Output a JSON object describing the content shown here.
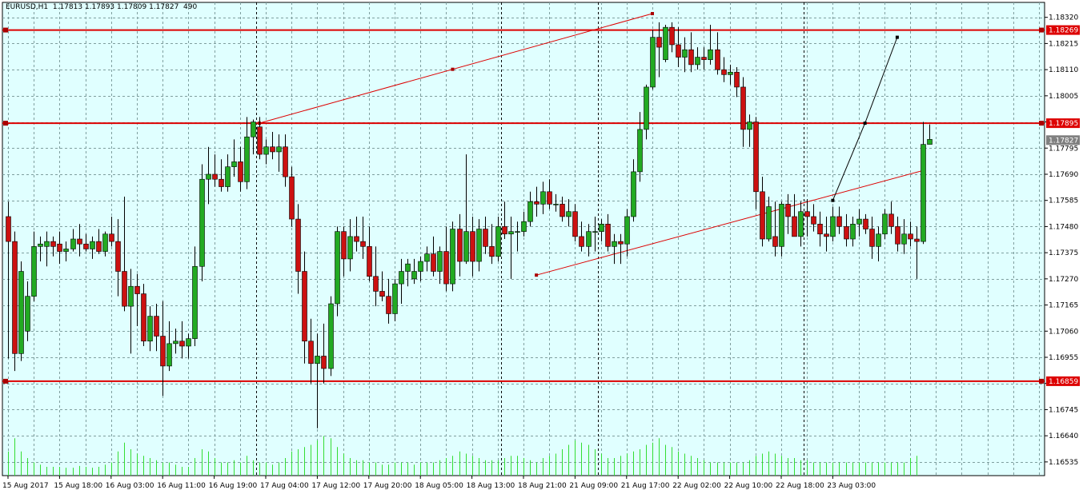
{
  "header": {
    "symbol": "EURUSD,H1",
    "ohlc": "1.17813 1.17893 1.17809 1.17827",
    "volume": "490"
  },
  "colors": {
    "background": "#e0ffff",
    "grid": "#7f9f9f",
    "bull": "#22aa22",
    "bear": "#cc1111",
    "volume": "#33dd33",
    "level_line": "#dd0000",
    "trend_line": "#dd0000",
    "projection_line": "#000000",
    "current_price_bg": "#808080"
  },
  "chart_data": {
    "type": "candlestick",
    "y_ticks": [
      "1.18320",
      "1.18215",
      "1.18110",
      "1.18005",
      "1.17900",
      "1.17795",
      "1.17690",
      "1.17585",
      "1.17480",
      "1.17375",
      "1.17270",
      "1.17165",
      "1.17060",
      "1.16955",
      "1.16850",
      "1.16745",
      "1.16640",
      "1.16535"
    ],
    "x_ticks": [
      "15 Aug 2017",
      "15 Aug 18:00",
      "16 Aug 03:00",
      "16 Aug 11:00",
      "16 Aug 19:00",
      "17 Aug 04:00",
      "17 Aug 12:00",
      "17 Aug 20:00",
      "18 Aug 05:00",
      "18 Aug 13:00",
      "18 Aug 21:00",
      "21 Aug 09:00",
      "21 Aug 17:00",
      "22 Aug 02:00",
      "22 Aug 10:00",
      "22 Aug 18:00",
      "23 Aug 03:00"
    ],
    "ylim": [
      1.1648,
      1.1838
    ],
    "candles": [
      {
        "o": 1.1752,
        "h": 1.1758,
        "l": 1.1695,
        "c": 1.1742
      },
      {
        "o": 1.1742,
        "h": 1.1746,
        "l": 1.169,
        "c": 1.1697
      },
      {
        "o": 1.1697,
        "h": 1.1734,
        "l": 1.1694,
        "c": 1.173
      },
      {
        "o": 1.1706,
        "h": 1.1726,
        "l": 1.1702,
        "c": 1.172
      },
      {
        "o": 1.172,
        "h": 1.1746,
        "l": 1.1718,
        "c": 1.174
      },
      {
        "o": 1.174,
        "h": 1.1744,
        "l": 1.1734,
        "c": 1.1741
      },
      {
        "o": 1.174,
        "h": 1.1746,
        "l": 1.1732,
        "c": 1.1742
      },
      {
        "o": 1.1742,
        "h": 1.1744,
        "l": 1.1736,
        "c": 1.174
      },
      {
        "o": 1.1741,
        "h": 1.1746,
        "l": 1.1733,
        "c": 1.1738
      },
      {
        "o": 1.1738,
        "h": 1.1742,
        "l": 1.1734,
        "c": 1.1739
      },
      {
        "o": 1.1739,
        "h": 1.1747,
        "l": 1.1738,
        "c": 1.1743
      },
      {
        "o": 1.1743,
        "h": 1.1749,
        "l": 1.1736,
        "c": 1.1741
      },
      {
        "o": 1.1741,
        "h": 1.1745,
        "l": 1.1738,
        "c": 1.1739
      },
      {
        "o": 1.1739,
        "h": 1.1744,
        "l": 1.1735,
        "c": 1.1742
      },
      {
        "o": 1.1742,
        "h": 1.1747,
        "l": 1.1737,
        "c": 1.1738
      },
      {
        "o": 1.1738,
        "h": 1.1746,
        "l": 1.1736,
        "c": 1.1745
      },
      {
        "o": 1.1745,
        "h": 1.1752,
        "l": 1.174,
        "c": 1.1742
      },
      {
        "o": 1.1742,
        "h": 1.1751,
        "l": 1.172,
        "c": 1.173
      },
      {
        "o": 1.173,
        "h": 1.176,
        "l": 1.1714,
        "c": 1.1716
      },
      {
        "o": 1.1716,
        "h": 1.1731,
        "l": 1.1697,
        "c": 1.1724
      },
      {
        "o": 1.1724,
        "h": 1.1729,
        "l": 1.1708,
        "c": 1.1721
      },
      {
        "o": 1.1721,
        "h": 1.1725,
        "l": 1.17,
        "c": 1.1702
      },
      {
        "o": 1.1702,
        "h": 1.1716,
        "l": 1.1698,
        "c": 1.1712
      },
      {
        "o": 1.1712,
        "h": 1.1717,
        "l": 1.1698,
        "c": 1.1704
      },
      {
        "o": 1.1704,
        "h": 1.1718,
        "l": 1.168,
        "c": 1.1692
      },
      {
        "o": 1.1692,
        "h": 1.171,
        "l": 1.169,
        "c": 1.1701
      },
      {
        "o": 1.1701,
        "h": 1.1707,
        "l": 1.1697,
        "c": 1.1702
      },
      {
        "o": 1.1702,
        "h": 1.171,
        "l": 1.1695,
        "c": 1.17
      },
      {
        "o": 1.17,
        "h": 1.1705,
        "l": 1.1695,
        "c": 1.1703
      },
      {
        "o": 1.1703,
        "h": 1.174,
        "l": 1.17,
        "c": 1.1732
      },
      {
        "o": 1.1732,
        "h": 1.1773,
        "l": 1.1726,
        "c": 1.1767
      },
      {
        "o": 1.1767,
        "h": 1.178,
        "l": 1.1757,
        "c": 1.1769
      },
      {
        "o": 1.1769,
        "h": 1.1777,
        "l": 1.1764,
        "c": 1.1767
      },
      {
        "o": 1.1767,
        "h": 1.1775,
        "l": 1.1762,
        "c": 1.1764
      },
      {
        "o": 1.1764,
        "h": 1.1777,
        "l": 1.1762,
        "c": 1.1772
      },
      {
        "o": 1.1772,
        "h": 1.1783,
        "l": 1.1768,
        "c": 1.1774
      },
      {
        "o": 1.1774,
        "h": 1.178,
        "l": 1.1762,
        "c": 1.1766
      },
      {
        "o": 1.1766,
        "h": 1.1792,
        "l": 1.1763,
        "c": 1.1784
      },
      {
        "o": 1.1784,
        "h": 1.1791,
        "l": 1.1777,
        "c": 1.179
      },
      {
        "o": 1.1788,
        "h": 1.1792,
        "l": 1.1775,
        "c": 1.1777
      },
      {
        "o": 1.1777,
        "h": 1.1783,
        "l": 1.1773,
        "c": 1.178
      },
      {
        "o": 1.178,
        "h": 1.1786,
        "l": 1.1775,
        "c": 1.1778
      },
      {
        "o": 1.1778,
        "h": 1.1785,
        "l": 1.177,
        "c": 1.178
      },
      {
        "o": 1.178,
        "h": 1.1785,
        "l": 1.1764,
        "c": 1.1768
      },
      {
        "o": 1.1768,
        "h": 1.1772,
        "l": 1.1748,
        "c": 1.1751
      },
      {
        "o": 1.1751,
        "h": 1.1757,
        "l": 1.1721,
        "c": 1.173
      },
      {
        "o": 1.173,
        "h": 1.1738,
        "l": 1.1693,
        "c": 1.1702
      },
      {
        "o": 1.1702,
        "h": 1.1711,
        "l": 1.1685,
        "c": 1.1693
      },
      {
        "o": 1.1693,
        "h": 1.1705,
        "l": 1.1667,
        "c": 1.1696
      },
      {
        "o": 1.1696,
        "h": 1.1709,
        "l": 1.1685,
        "c": 1.1691
      },
      {
        "o": 1.1691,
        "h": 1.172,
        "l": 1.1688,
        "c": 1.1717
      },
      {
        "o": 1.1717,
        "h": 1.1748,
        "l": 1.1712,
        "c": 1.1746
      },
      {
        "o": 1.1746,
        "h": 1.1748,
        "l": 1.1728,
        "c": 1.1735
      },
      {
        "o": 1.1735,
        "h": 1.1751,
        "l": 1.173,
        "c": 1.1744
      },
      {
        "o": 1.1744,
        "h": 1.1752,
        "l": 1.1738,
        "c": 1.1742
      },
      {
        "o": 1.1742,
        "h": 1.1752,
        "l": 1.1735,
        "c": 1.174
      },
      {
        "o": 1.174,
        "h": 1.1748,
        "l": 1.1726,
        "c": 1.1728
      },
      {
        "o": 1.1728,
        "h": 1.174,
        "l": 1.1716,
        "c": 1.1722
      },
      {
        "o": 1.1722,
        "h": 1.173,
        "l": 1.1718,
        "c": 1.172
      },
      {
        "o": 1.172,
        "h": 1.1727,
        "l": 1.1709,
        "c": 1.1713
      },
      {
        "o": 1.1713,
        "h": 1.1727,
        "l": 1.171,
        "c": 1.1725
      },
      {
        "o": 1.1725,
        "h": 1.1735,
        "l": 1.1717,
        "c": 1.173
      },
      {
        "o": 1.173,
        "h": 1.1735,
        "l": 1.1724,
        "c": 1.1733
      },
      {
        "o": 1.1727,
        "h": 1.1735,
        "l": 1.1725,
        "c": 1.173
      },
      {
        "o": 1.173,
        "h": 1.1736,
        "l": 1.1726,
        "c": 1.1734
      },
      {
        "o": 1.1734,
        "h": 1.174,
        "l": 1.173,
        "c": 1.1737
      },
      {
        "o": 1.1737,
        "h": 1.1744,
        "l": 1.1728,
        "c": 1.173
      },
      {
        "o": 1.173,
        "h": 1.174,
        "l": 1.1725,
        "c": 1.1738
      },
      {
        "o": 1.1738,
        "h": 1.1748,
        "l": 1.1722,
        "c": 1.1725
      },
      {
        "o": 1.1725,
        "h": 1.175,
        "l": 1.1722,
        "c": 1.1747
      },
      {
        "o": 1.1747,
        "h": 1.1753,
        "l": 1.1728,
        "c": 1.1734
      },
      {
        "o": 1.1734,
        "h": 1.1777,
        "l": 1.1733,
        "c": 1.1746
      },
      {
        "o": 1.1746,
        "h": 1.1752,
        "l": 1.1728,
        "c": 1.1734
      },
      {
        "o": 1.1734,
        "h": 1.1751,
        "l": 1.173,
        "c": 1.1747
      },
      {
        "o": 1.1747,
        "h": 1.1752,
        "l": 1.1737,
        "c": 1.174
      },
      {
        "o": 1.174,
        "h": 1.1749,
        "l": 1.1733,
        "c": 1.1736
      },
      {
        "o": 1.1736,
        "h": 1.1752,
        "l": 1.1734,
        "c": 1.1748
      },
      {
        "o": 1.1748,
        "h": 1.1758,
        "l": 1.1743,
        "c": 1.1745
      },
      {
        "o": 1.1745,
        "h": 1.1752,
        "l": 1.1727,
        "c": 1.1746
      },
      {
        "o": 1.1746,
        "h": 1.175,
        "l": 1.1738,
        "c": 1.1746
      },
      {
        "o": 1.1746,
        "h": 1.1754,
        "l": 1.1744,
        "c": 1.175
      },
      {
        "o": 1.175,
        "h": 1.1762,
        "l": 1.1748,
        "c": 1.1758
      },
      {
        "o": 1.1758,
        "h": 1.1764,
        "l": 1.1752,
        "c": 1.1757
      },
      {
        "o": 1.1757,
        "h": 1.1766,
        "l": 1.1753,
        "c": 1.1762
      },
      {
        "o": 1.1762,
        "h": 1.1767,
        "l": 1.1755,
        "c": 1.1757
      },
      {
        "o": 1.1757,
        "h": 1.1761,
        "l": 1.1754,
        "c": 1.1757
      },
      {
        "o": 1.1757,
        "h": 1.176,
        "l": 1.175,
        "c": 1.1752
      },
      {
        "o": 1.1752,
        "h": 1.1759,
        "l": 1.1748,
        "c": 1.1754
      },
      {
        "o": 1.1754,
        "h": 1.1757,
        "l": 1.1742,
        "c": 1.1744
      },
      {
        "o": 1.1744,
        "h": 1.175,
        "l": 1.1738,
        "c": 1.174
      },
      {
        "o": 1.174,
        "h": 1.1749,
        "l": 1.1736,
        "c": 1.1746
      },
      {
        "o": 1.1746,
        "h": 1.1752,
        "l": 1.1738,
        "c": 1.1746
      },
      {
        "o": 1.1746,
        "h": 1.1751,
        "l": 1.1742,
        "c": 1.1749
      },
      {
        "o": 1.1749,
        "h": 1.1753,
        "l": 1.1738,
        "c": 1.174
      },
      {
        "o": 1.174,
        "h": 1.1745,
        "l": 1.1733,
        "c": 1.1742
      },
      {
        "o": 1.1742,
        "h": 1.1745,
        "l": 1.1733,
        "c": 1.1741
      },
      {
        "o": 1.1741,
        "h": 1.1755,
        "l": 1.1736,
        "c": 1.1752
      },
      {
        "o": 1.1752,
        "h": 1.1775,
        "l": 1.175,
        "c": 1.177
      },
      {
        "o": 1.177,
        "h": 1.1794,
        "l": 1.1766,
        "c": 1.1787
      },
      {
        "o": 1.1787,
        "h": 1.1805,
        "l": 1.1783,
        "c": 1.1804
      },
      {
        "o": 1.1804,
        "h": 1.1827,
        "l": 1.1803,
        "c": 1.1824
      },
      {
        "o": 1.1824,
        "h": 1.183,
        "l": 1.1808,
        "c": 1.182
      },
      {
        "o": 1.1815,
        "h": 1.1829,
        "l": 1.1814,
        "c": 1.1828
      },
      {
        "o": 1.1828,
        "h": 1.183,
        "l": 1.1818,
        "c": 1.1821
      },
      {
        "o": 1.1821,
        "h": 1.1828,
        "l": 1.1812,
        "c": 1.1816
      },
      {
        "o": 1.1816,
        "h": 1.1824,
        "l": 1.181,
        "c": 1.1819
      },
      {
        "o": 1.1819,
        "h": 1.1826,
        "l": 1.181,
        "c": 1.1813
      },
      {
        "o": 1.1813,
        "h": 1.182,
        "l": 1.1811,
        "c": 1.1816
      },
      {
        "o": 1.1816,
        "h": 1.182,
        "l": 1.1811,
        "c": 1.1815
      },
      {
        "o": 1.1815,
        "h": 1.1829,
        "l": 1.1813,
        "c": 1.1819
      },
      {
        "o": 1.1819,
        "h": 1.1826,
        "l": 1.1809,
        "c": 1.1811
      },
      {
        "o": 1.1811,
        "h": 1.1816,
        "l": 1.1806,
        "c": 1.1809
      },
      {
        "o": 1.1809,
        "h": 1.1813,
        "l": 1.1805,
        "c": 1.181
      },
      {
        "o": 1.181,
        "h": 1.1812,
        "l": 1.18,
        "c": 1.1804
      },
      {
        "o": 1.1804,
        "h": 1.1808,
        "l": 1.178,
        "c": 1.1787
      },
      {
        "o": 1.1787,
        "h": 1.1793,
        "l": 1.178,
        "c": 1.179
      },
      {
        "o": 1.179,
        "h": 1.1792,
        "l": 1.1755,
        "c": 1.1762
      },
      {
        "o": 1.1762,
        "h": 1.1768,
        "l": 1.174,
        "c": 1.1743
      },
      {
        "o": 1.1743,
        "h": 1.176,
        "l": 1.1742,
        "c": 1.1756
      },
      {
        "o": 1.1744,
        "h": 1.1758,
        "l": 1.1736,
        "c": 1.174
      },
      {
        "o": 1.174,
        "h": 1.1758,
        "l": 1.1736,
        "c": 1.1757
      },
      {
        "o": 1.1757,
        "h": 1.1761,
        "l": 1.1745,
        "c": 1.1752
      },
      {
        "o": 1.1752,
        "h": 1.1761,
        "l": 1.1744,
        "c": 1.1744
      },
      {
        "o": 1.1744,
        "h": 1.1758,
        "l": 1.174,
        "c": 1.1754
      },
      {
        "o": 1.1754,
        "h": 1.1759,
        "l": 1.1744,
        "c": 1.1752
      },
      {
        "o": 1.1752,
        "h": 1.1757,
        "l": 1.1746,
        "c": 1.1749
      },
      {
        "o": 1.1749,
        "h": 1.1754,
        "l": 1.174,
        "c": 1.1745
      },
      {
        "o": 1.1745,
        "h": 1.1752,
        "l": 1.1738,
        "c": 1.1744
      },
      {
        "o": 1.1744,
        "h": 1.1756,
        "l": 1.1742,
        "c": 1.1752
      },
      {
        "o": 1.1752,
        "h": 1.1756,
        "l": 1.1745,
        "c": 1.1748
      },
      {
        "o": 1.1748,
        "h": 1.1753,
        "l": 1.174,
        "c": 1.1743
      },
      {
        "o": 1.1743,
        "h": 1.1752,
        "l": 1.174,
        "c": 1.1749
      },
      {
        "o": 1.1749,
        "h": 1.1755,
        "l": 1.1744,
        "c": 1.1751
      },
      {
        "o": 1.1751,
        "h": 1.1753,
        "l": 1.1745,
        "c": 1.1747
      },
      {
        "o": 1.1747,
        "h": 1.1752,
        "l": 1.1735,
        "c": 1.174
      },
      {
        "o": 1.174,
        "h": 1.1748,
        "l": 1.1734,
        "c": 1.1745
      },
      {
        "o": 1.1745,
        "h": 1.1755,
        "l": 1.1743,
        "c": 1.1753
      },
      {
        "o": 1.1753,
        "h": 1.1758,
        "l": 1.1745,
        "c": 1.1748
      },
      {
        "o": 1.1748,
        "h": 1.1752,
        "l": 1.1738,
        "c": 1.1741
      },
      {
        "o": 1.1741,
        "h": 1.1751,
        "l": 1.1737,
        "c": 1.1745
      },
      {
        "o": 1.1745,
        "h": 1.175,
        "l": 1.174,
        "c": 1.1743
      },
      {
        "o": 1.1743,
        "h": 1.1748,
        "l": 1.1727,
        "c": 1.1742
      },
      {
        "o": 1.1742,
        "h": 1.179,
        "l": 1.1741,
        "c": 1.1781
      },
      {
        "o": 1.1781,
        "h": 1.1789,
        "l": 1.1781,
        "c": 1.1783
      }
    ],
    "volumes": [
      0.55,
      0.85,
      0.55,
      0.4,
      0.3,
      0.25,
      0.2,
      0.2,
      0.2,
      0.18,
      0.18,
      0.22,
      0.2,
      0.18,
      0.2,
      0.25,
      0.3,
      0.55,
      0.75,
      0.6,
      0.5,
      0.45,
      0.4,
      0.35,
      0.3,
      0.3,
      0.25,
      0.2,
      0.2,
      0.4,
      0.6,
      0.55,
      0.4,
      0.3,
      0.3,
      0.35,
      0.3,
      0.45,
      0.35,
      0.3,
      0.3,
      0.25,
      0.3,
      0.4,
      0.55,
      0.6,
      0.65,
      0.7,
      0.8,
      0.9,
      0.85,
      0.65,
      0.5,
      0.4,
      0.35,
      0.35,
      0.3,
      0.3,
      0.25,
      0.25,
      0.3,
      0.3,
      0.3,
      0.25,
      0.3,
      0.3,
      0.3,
      0.35,
      0.4,
      0.45,
      0.55,
      0.5,
      0.45,
      0.4,
      0.35,
      0.35,
      0.35,
      0.4,
      0.45,
      0.45,
      0.4,
      0.35,
      0.3,
      0.4,
      0.45,
      0.5,
      0.6,
      0.7,
      0.8,
      0.75,
      0.7,
      0.6,
      0.5,
      0.4,
      0.4,
      0.45,
      0.5,
      0.55,
      0.6,
      0.7,
      0.75,
      0.85,
      0.7,
      0.65,
      0.55,
      0.5,
      0.45,
      0.4,
      0.35,
      0.3,
      0.3,
      0.3,
      0.3,
      0.3,
      0.3,
      0.35,
      0.45,
      0.5,
      0.55,
      0.5,
      0.45,
      0.4,
      0.4,
      0.35,
      0.35,
      0.3,
      0.3,
      0.3,
      0.3,
      0.3,
      0.3,
      0.3,
      0.3,
      0.3,
      0.3,
      0.3,
      0.3,
      0.3,
      0.3,
      0.3,
      0.4,
      0.45
    ],
    "levels": [
      {
        "price": 1.18269,
        "label": "1.18269"
      },
      {
        "price": 1.17895,
        "label": "1.17895"
      },
      {
        "price": 1.16859,
        "label": "1.16859"
      }
    ],
    "current_price": {
      "price": 1.17827,
      "label": "1.17827"
    },
    "trendlines": [
      {
        "x1": 39,
        "y1": 1.17895,
        "x2": 100,
        "y2": 1.18335,
        "handles": [
          39,
          69,
          100
        ]
      },
      {
        "x1": 82,
        "y1": 1.17285,
        "x2": 142,
        "y2": 1.17705,
        "handles": [
          82
        ]
      }
    ],
    "projection": [
      [
        128,
        1.17585
      ],
      [
        133,
        1.17895
      ],
      [
        138,
        1.1824
      ]
    ],
    "separators": [
      [
        38,
        39
      ],
      [
        76,
        77
      ],
      [
        91,
        92
      ],
      [
        123,
        124
      ]
    ]
  }
}
